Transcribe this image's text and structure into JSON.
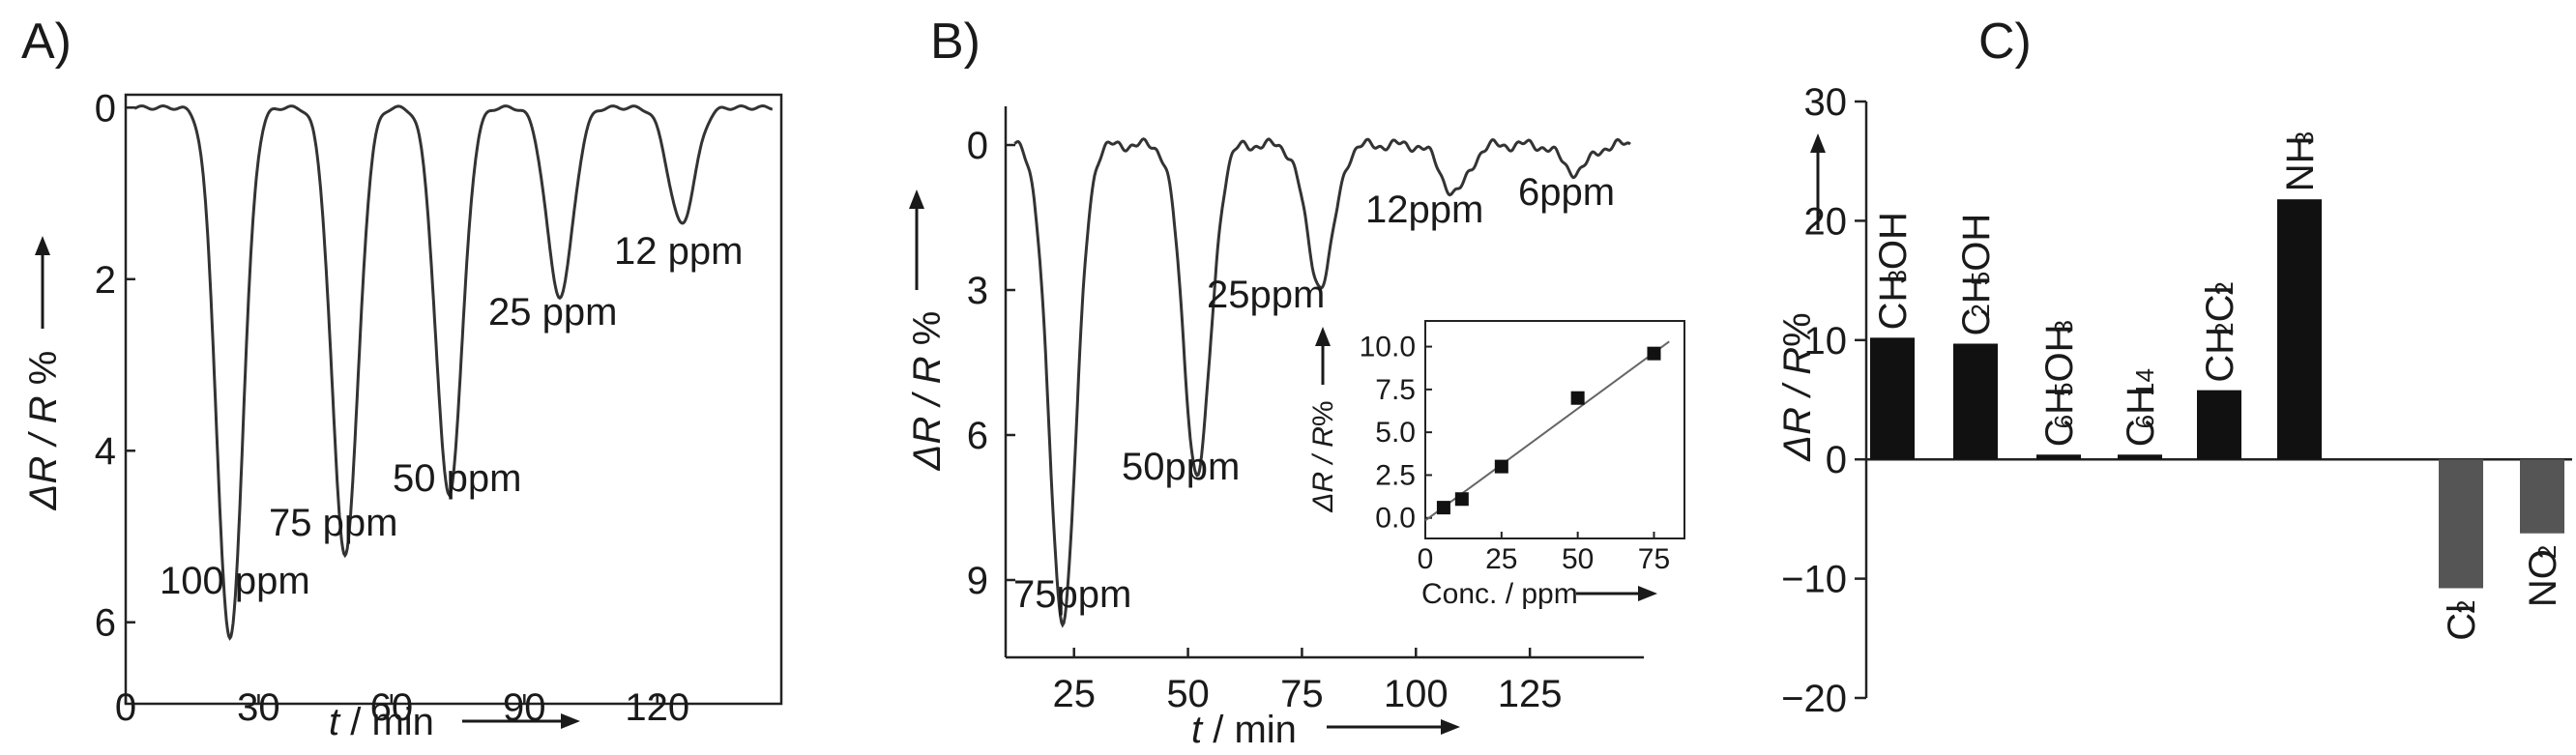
{
  "chart_data": [
    {
      "panel_label": "A)",
      "type": "line",
      "xlabel_var": "t",
      "xlabel_unit": " / min",
      "ylabel_var": "ΔR / R",
      "ylabel_unit": " %",
      "xlim": [
        0,
        148
      ],
      "ylim": [
        -0.15,
        6.95
      ],
      "y_inverted": true,
      "xticks": [
        0,
        30,
        60,
        90,
        120
      ],
      "yticks": [
        0,
        2,
        4,
        6
      ],
      "dips": [
        {
          "t": 23.5,
          "depth": 6.2,
          "label": "100 ppm"
        },
        {
          "t": 49.5,
          "depth": 5.2,
          "label": "75 ppm"
        },
        {
          "t": 73.0,
          "depth": 4.5,
          "label": "50 ppm"
        },
        {
          "t": 98.0,
          "depth": 2.2,
          "label": "25 ppm"
        },
        {
          "t": 125.5,
          "depth": 1.35,
          "label": "12 ppm"
        }
      ]
    },
    {
      "panel_label": "B)",
      "type": "line",
      "xlabel_var": "t",
      "xlabel_unit": " / min",
      "ylabel_var": "ΔR / R",
      "ylabel_unit": " %",
      "xlim": [
        10,
        150
      ],
      "ylim": [
        -0.8,
        10.6
      ],
      "y_inverted": true,
      "xticks": [
        25,
        50,
        75,
        100,
        125
      ],
      "yticks": [
        0,
        3,
        6,
        9
      ],
      "dips": [
        {
          "t": 22.5,
          "depth": 9.8,
          "label": "75ppm"
        },
        {
          "t": 52.0,
          "depth": 6.8,
          "label": "50ppm"
        },
        {
          "t": 79.0,
          "depth": 2.9,
          "label": "25ppm"
        },
        {
          "t": 108.5,
          "depth": 1.0,
          "label": "12ppm"
        },
        {
          "t": 135.0,
          "depth": 0.55,
          "label": "6ppm"
        }
      ],
      "inset": {
        "type": "scatter",
        "xlabel": "Conc. / ppm",
        "ylabel_var": "ΔR / R",
        "ylabel_unit": "%",
        "xlim": [
          0,
          85
        ],
        "ylim": [
          -1.2,
          11.5
        ],
        "xticks": [
          0,
          25,
          50,
          75
        ],
        "yticks": [
          0.0,
          2.5,
          5.0,
          7.5,
          10.0
        ],
        "ytick_labels": [
          "0.0",
          "2.5",
          "5.0",
          "7.5",
          "10.0"
        ],
        "points": [
          {
            "x": 6,
            "y": 0.6
          },
          {
            "x": 12,
            "y": 1.1
          },
          {
            "x": 25,
            "y": 3.0
          },
          {
            "x": 50,
            "y": 7.0
          },
          {
            "x": 75,
            "y": 9.6
          }
        ],
        "fit_line": [
          [
            0,
            -0.15
          ],
          [
            80,
            10.3
          ]
        ]
      }
    },
    {
      "panel_label": "C)",
      "type": "bar",
      "ylabel_var": "ΔR / R",
      "ylabel_unit": "%",
      "ylim": [
        -20,
        30
      ],
      "yticks": [
        30,
        20,
        10,
        0,
        -10,
        -20
      ],
      "ytick_labels": [
        "30",
        "20",
        "10",
        "0",
        "−10",
        "−20"
      ],
      "categories": [
        "CH3OH",
        "C2H5OH",
        "C6H5OH3",
        "C6H14",
        "CH2Cl2",
        "NH3",
        "Cl2",
        "NO2"
      ],
      "category_parts": [
        [
          [
            "CH",
            ""
          ],
          [
            "3",
            "sub"
          ],
          [
            "OH",
            ""
          ]
        ],
        [
          [
            "C",
            ""
          ],
          [
            "2",
            "sub"
          ],
          [
            "H",
            ""
          ],
          [
            "5",
            "sub"
          ],
          [
            "OH",
            ""
          ]
        ],
        [
          [
            "C",
            ""
          ],
          [
            "6",
            "sub"
          ],
          [
            "H",
            ""
          ],
          [
            "5",
            "sub"
          ],
          [
            "OH",
            ""
          ],
          [
            "3",
            "sub"
          ]
        ],
        [
          [
            "C",
            ""
          ],
          [
            "6",
            "sub"
          ],
          [
            "H",
            ""
          ],
          [
            "14",
            "sub"
          ]
        ],
        [
          [
            "CH",
            ""
          ],
          [
            "2",
            "sub"
          ],
          [
            "Cl",
            ""
          ],
          [
            "2",
            "sub"
          ]
        ],
        [
          [
            "NH",
            ""
          ],
          [
            "3",
            "sub"
          ]
        ],
        [
          [
            "Cl",
            ""
          ],
          [
            "2",
            "sub"
          ]
        ],
        [
          [
            "NO",
            ""
          ],
          [
            "2",
            "sub"
          ]
        ]
      ],
      "values": [
        10.2,
        9.7,
        0.4,
        0.4,
        5.8,
        21.8,
        -10.8,
        -6.2
      ],
      "colors": {
        "positive": "#111111",
        "negative": "#555555"
      }
    }
  ]
}
